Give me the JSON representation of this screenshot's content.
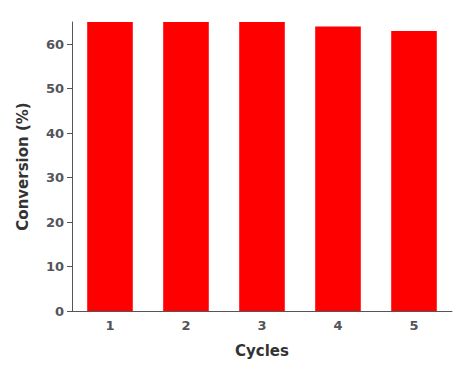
{
  "chart_data": {
    "type": "bar",
    "categories": [
      "1",
      "2",
      "3",
      "4",
      "5"
    ],
    "values": [
      65,
      65,
      65,
      64,
      63
    ],
    "color": "#ff0000",
    "xlabel": "Cycles",
    "ylabel": "Conversion (%)",
    "ylim": [
      0,
      65
    ],
    "yticks": [
      0,
      10,
      20,
      30,
      40,
      50,
      60
    ],
    "grid": false
  }
}
